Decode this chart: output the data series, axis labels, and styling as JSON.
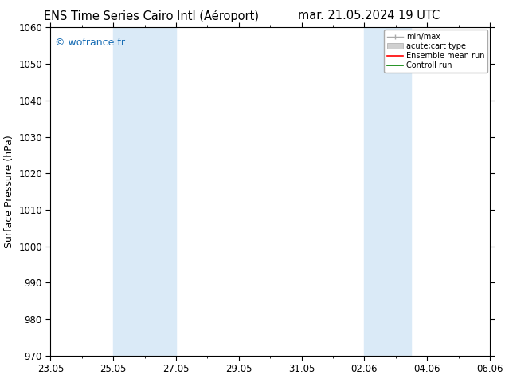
{
  "title_left": "ENS Time Series Cairo Intl (Aéroport)",
  "title_right": "mar. 21.05.2024 19 UTC",
  "ylabel": "Surface Pressure (hPa)",
  "ylim": [
    970,
    1060
  ],
  "yticks": [
    970,
    980,
    990,
    1000,
    1010,
    1020,
    1030,
    1040,
    1050,
    1060
  ],
  "xtick_labels": [
    "23.05",
    "25.05",
    "27.05",
    "29.05",
    "31.05",
    "02.06",
    "04.06",
    "06.06"
  ],
  "xtick_positions": [
    0,
    2,
    4,
    6,
    8,
    10,
    12,
    14
  ],
  "start_date": "2024-05-23",
  "end_date": "2024-06-06",
  "xlim": [
    0,
    14
  ],
  "shaded_regions": [
    {
      "start": 2,
      "end": 4,
      "color": "#daeaf7"
    },
    {
      "start": 10,
      "end": 11.5,
      "color": "#daeaf7"
    }
  ],
  "watermark_text": "© wofrance.fr",
  "watermark_color": "#1a6eb5",
  "legend_items": [
    {
      "label": "min/max",
      "color": "#aaaaaa",
      "style": "minmax"
    },
    {
      "label": "acute;cart type",
      "color": "#cccccc",
      "style": "box"
    },
    {
      "label": "Ensemble mean run",
      "color": "#ff0000",
      "style": "line"
    },
    {
      "label": "Controll run",
      "color": "#008000",
      "style": "line"
    }
  ],
  "background_color": "#ffffff",
  "title_fontsize": 10.5,
  "tick_fontsize": 8.5,
  "ylabel_fontsize": 9,
  "watermark_fontsize": 9
}
